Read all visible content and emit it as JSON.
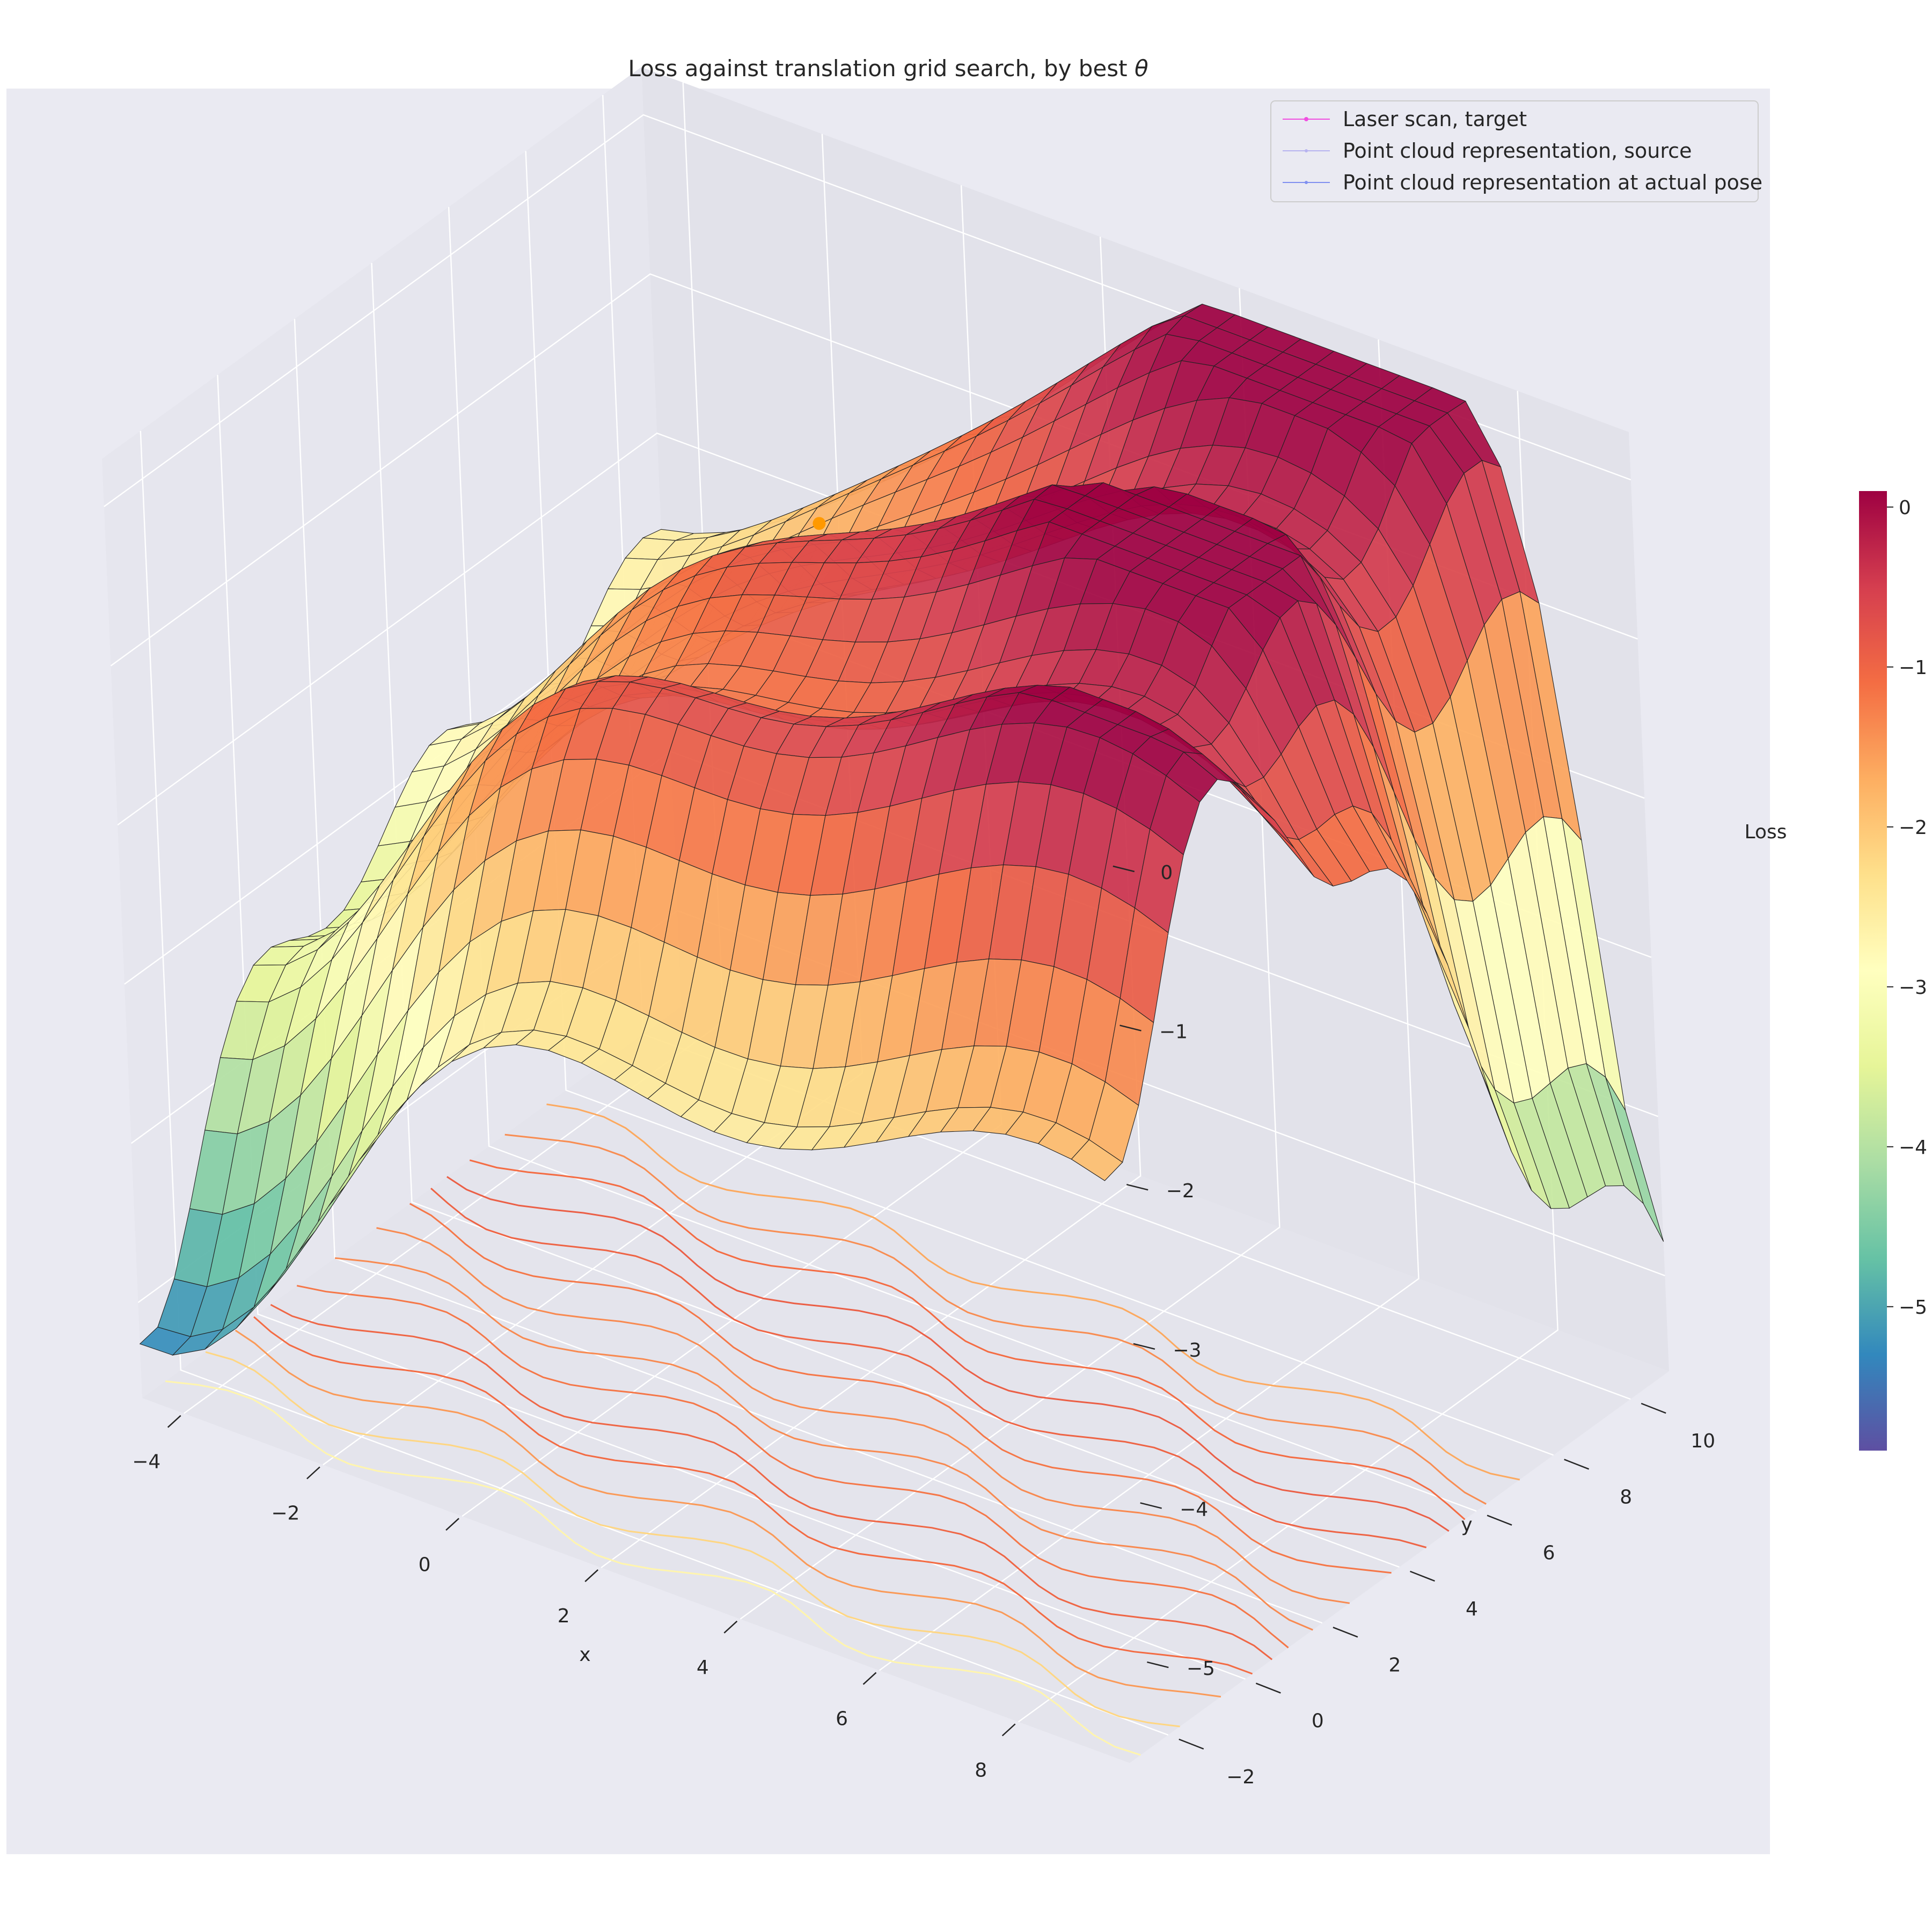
{
  "chart_data": {
    "type": "surface3d",
    "title_text": "Loss against translation grid search, by best ",
    "title_symbol": "θ",
    "xlabel": "x",
    "ylabel": "y",
    "zlabel": "Loss",
    "xlim": [
      -4.6,
      9.6
    ],
    "ylim": [
      -3.0,
      11.0
    ],
    "zlim": [
      -5.6,
      0.3
    ],
    "x_ticks": [
      -4,
      -2,
      0,
      2,
      4,
      6,
      8
    ],
    "y_ticks": [
      -2,
      0,
      2,
      4,
      6,
      8,
      10
    ],
    "z_ticks": [
      0,
      -1,
      -2,
      -3,
      -4,
      -5
    ],
    "x_tick_labels": [
      "−4",
      "−2",
      "0",
      "2",
      "4",
      "6",
      "8"
    ],
    "y_tick_labels": [
      "−2",
      "0",
      "2",
      "4",
      "6",
      "8",
      "10"
    ],
    "z_tick_labels": [
      "0",
      "−1",
      "−2",
      "−3",
      "−4",
      "−5"
    ],
    "colorbar": {
      "range": [
        -5.9,
        0.1
      ],
      "ticks": [
        0,
        -1,
        -2,
        -3,
        -4,
        -5
      ],
      "tick_labels": [
        "0",
        "−1",
        "−2",
        "−3",
        "−4",
        "−5"
      ],
      "colormap": "Spectral"
    },
    "legend": {
      "placement": "top-right",
      "entries": [
        {
          "label": "Laser scan, target",
          "color": "#f04ee0"
        },
        {
          "label": "Point cloud representation, source",
          "color": "#b7b3f0"
        },
        {
          "label": "Point cloud representation at actual pose",
          "color": "#7f8ff0"
        }
      ]
    },
    "best_estimate_marker": {
      "x": -1.3,
      "y": 9.3,
      "color": "#ff9900"
    },
    "grid": true,
    "background": "#eaeaf2"
  }
}
